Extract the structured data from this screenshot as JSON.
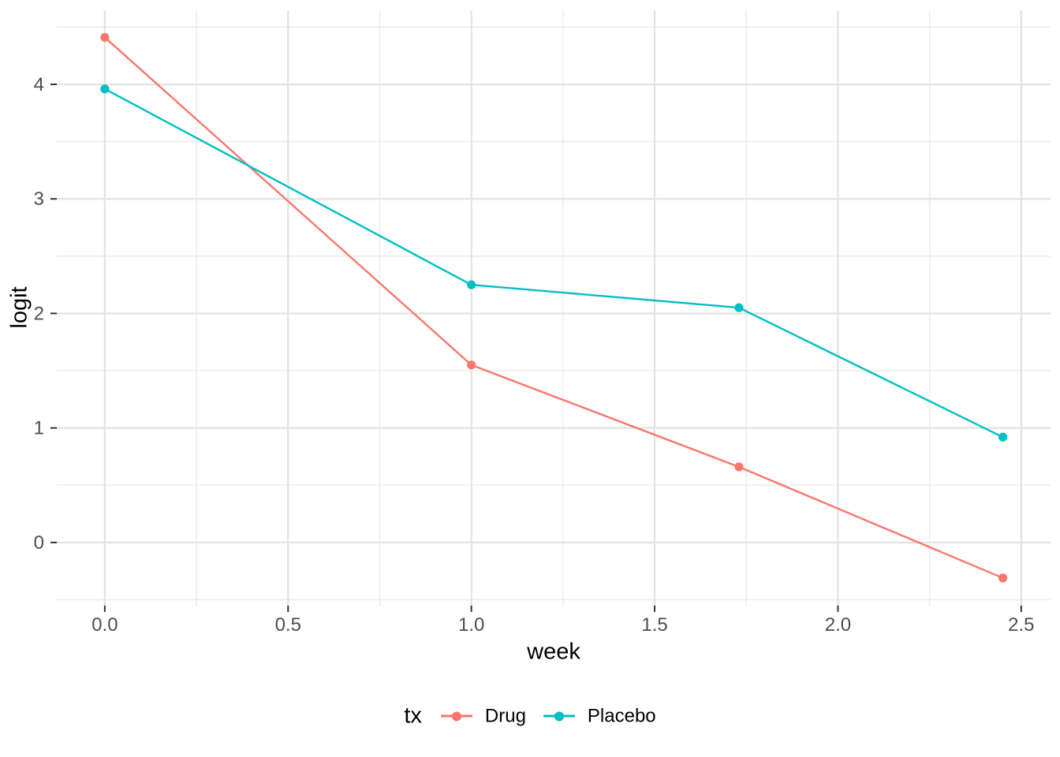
{
  "chart_data": {
    "type": "line",
    "title": "",
    "xlabel": "week",
    "ylabel": "logit",
    "legend_title": "tx",
    "legend_position": "bottom",
    "grid": true,
    "x": [
      0,
      1,
      1.73,
      2.45
    ],
    "series": [
      {
        "name": "Drug",
        "color": "#F8766D",
        "values": [
          4.41,
          1.55,
          0.66,
          -0.31
        ]
      },
      {
        "name": "Placebo",
        "color": "#00BFC4",
        "values": [
          3.96,
          2.25,
          2.05,
          0.92
        ]
      }
    ],
    "xlim": [
      -0.131,
      2.58
    ],
    "ylim": [
      -0.551,
      4.647
    ],
    "x_major_ticks": [
      0,
      0.5,
      1,
      1.5,
      2,
      2.5
    ],
    "x_tick_labels": [
      "0.0",
      "0.5",
      "1.0",
      "1.5",
      "2.0",
      "2.5"
    ],
    "x_minor_ticks": [
      0.25,
      0.75,
      1.25,
      1.75,
      2.25
    ],
    "y_major_ticks": [
      0,
      1,
      2,
      3,
      4
    ],
    "y_tick_labels": [
      "0",
      "1",
      "2",
      "3",
      "4"
    ],
    "y_minor_ticks": [
      -0.5,
      0.5,
      1.5,
      2.5,
      3.5,
      4.5
    ],
    "colors": {
      "major_grid": "#E2E2E2",
      "minor_grid": "#EDEDED",
      "tick": "#333333",
      "tick_label": "#4D4D4D",
      "axis_title": "#000000"
    }
  }
}
